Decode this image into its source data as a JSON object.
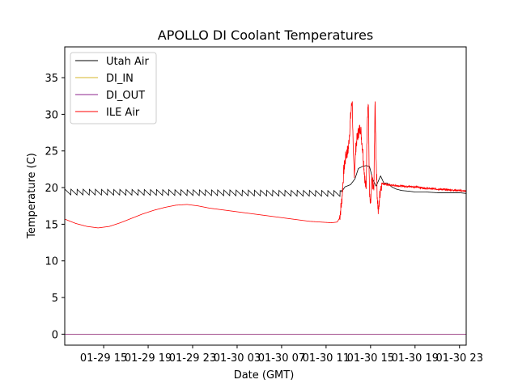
{
  "chart_data": {
    "type": "line",
    "title": "APOLLO DI Coolant Temperatures",
    "xlabel": "Date (GMT)",
    "ylabel": "Temperature (C)",
    "xlim": [
      11.5,
      47.6
    ],
    "ylim": [
      -1.5,
      39.2
    ],
    "grid": false,
    "legend_position": "upper-left",
    "x_unit": "hours since 01-29 00:00 GMT",
    "x_ticks": [
      {
        "value": 15,
        "label": "01-29 15"
      },
      {
        "value": 19,
        "label": "01-29 19"
      },
      {
        "value": 23,
        "label": "01-29 23"
      },
      {
        "value": 27,
        "label": "01-30 03"
      },
      {
        "value": 31,
        "label": "01-30 07"
      },
      {
        "value": 35,
        "label": "01-30 11"
      },
      {
        "value": 39,
        "label": "01-30 15"
      },
      {
        "value": 43,
        "label": "01-30 19"
      },
      {
        "value": 47,
        "label": "01-30 23"
      }
    ],
    "y_ticks": [
      {
        "value": 0,
        "label": "0"
      },
      {
        "value": 5,
        "label": "5"
      },
      {
        "value": 10,
        "label": "10"
      },
      {
        "value": 15,
        "label": "15"
      },
      {
        "value": 20,
        "label": "20"
      },
      {
        "value": 25,
        "label": "25"
      },
      {
        "value": 30,
        "label": "30"
      },
      {
        "value": 35,
        "label": "35"
      }
    ],
    "series": [
      {
        "name": "Utah Air",
        "color": "#000000",
        "x": [
          11.5,
          36.3,
          36.7,
          37.2,
          37.6,
          37.9,
          38.3,
          38.6,
          38.9,
          39.2,
          39.5,
          39.9,
          40.2,
          40.5,
          40.9,
          41.3,
          41.8,
          42.5,
          43.0,
          44.0,
          45.0,
          46.0,
          47.0,
          47.6
        ],
        "values": [
          19.4,
          19.2,
          20.1,
          20.4,
          21.2,
          22.6,
          22.9,
          23.0,
          22.9,
          21.1,
          20.2,
          21.6,
          20.6,
          20.6,
          20.1,
          19.8,
          19.6,
          19.5,
          19.4,
          19.4,
          19.3,
          19.3,
          19.3,
          19.2
        ],
        "oscillation": {
          "x_start": 11.5,
          "x_end": 36.4,
          "period_hours": 0.55,
          "amplitude": 0.4
        }
      },
      {
        "name": "DI_IN",
        "color": "#d4b428",
        "x": [
          11.5,
          47.6
        ],
        "values": [
          0.0,
          0.0
        ]
      },
      {
        "name": "DI_OUT",
        "color": "#8e238e",
        "x": [
          11.5,
          47.6
        ],
        "values": [
          0.0,
          0.0
        ]
      },
      {
        "name": "ILE Air",
        "color": "#ff0000",
        "x": [
          11.5,
          12.5,
          13.5,
          14.5,
          15.5,
          16.5,
          17.5,
          18.5,
          19.5,
          20.5,
          21.5,
          22.5,
          23.5,
          24.5,
          25.5,
          26.5,
          27.5,
          28.5,
          29.5,
          30.5,
          31.5,
          32.5,
          33.5,
          34.5,
          35.5,
          36.0,
          36.2,
          36.4,
          36.6,
          36.8,
          37.0,
          37.2,
          37.35,
          37.45,
          37.55,
          37.7,
          37.9,
          38.1,
          38.3,
          38.5,
          38.6,
          38.7,
          38.8,
          38.9,
          39.0,
          39.1,
          39.2,
          39.3,
          39.4,
          39.5,
          39.6,
          39.7,
          39.8,
          39.9,
          40.0,
          40.2,
          40.5,
          41.0,
          42.0,
          43.0,
          44.0,
          45.0,
          46.0,
          47.0,
          47.6
        ],
        "values": [
          15.7,
          15.1,
          14.7,
          14.5,
          14.7,
          15.2,
          15.8,
          16.4,
          16.9,
          17.3,
          17.6,
          17.7,
          17.5,
          17.2,
          17.0,
          16.8,
          16.6,
          16.4,
          16.2,
          16.0,
          15.8,
          15.6,
          15.4,
          15.3,
          15.2,
          15.3,
          15.8,
          18.0,
          22.5,
          24.5,
          25.2,
          29.5,
          32.2,
          24.0,
          22.0,
          26.0,
          27.5,
          28.2,
          25.0,
          21.0,
          19.5,
          29.5,
          31.8,
          19.0,
          17.4,
          21.0,
          20.4,
          19.6,
          31.8,
          24.0,
          19.0,
          16.5,
          18.5,
          20.0,
          20.6,
          20.5,
          20.4,
          20.3,
          20.2,
          20.1,
          19.9,
          19.8,
          19.7,
          19.6,
          19.5
        ],
        "noise_segments": [
          {
            "x_start": 36.2,
            "x_end": 40.0,
            "amplitude": 0.9
          },
          {
            "x_start": 40.0,
            "x_end": 47.6,
            "amplitude": 0.12
          }
        ]
      }
    ]
  }
}
